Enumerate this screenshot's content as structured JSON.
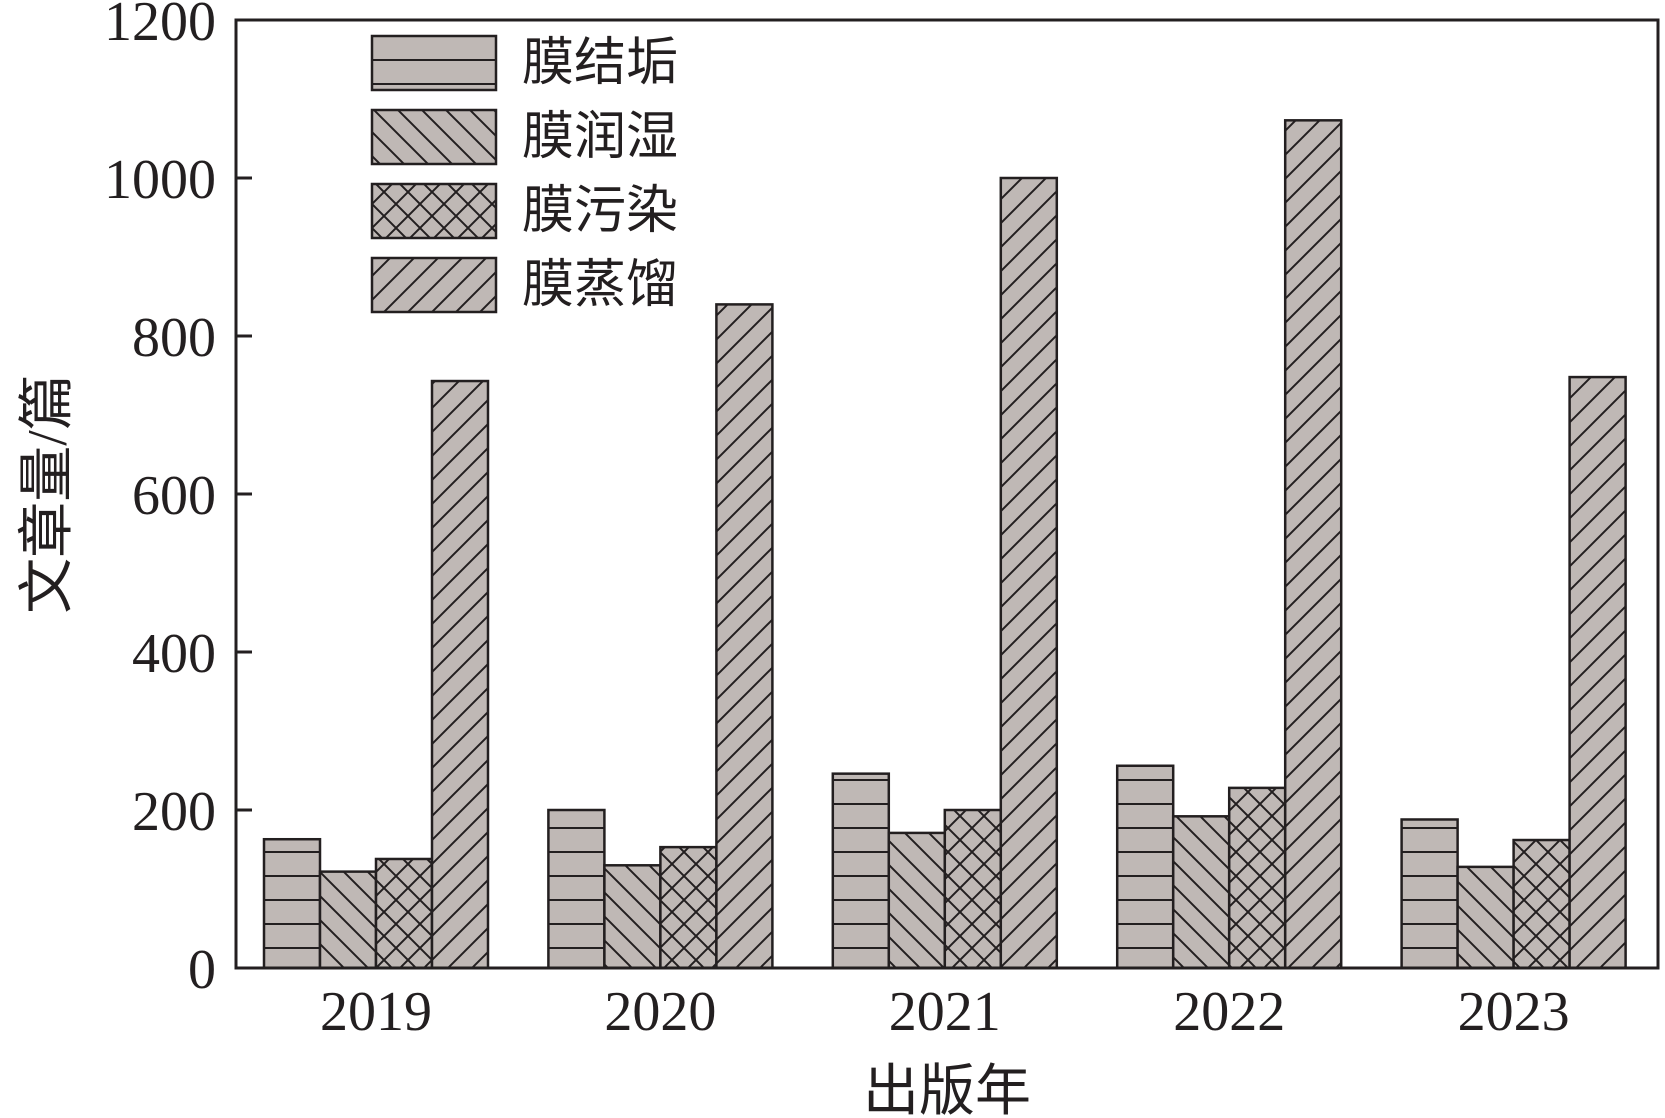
{
  "chart_data": {
    "type": "bar",
    "xlabel": "出版年",
    "ylabel": "文章量/篇",
    "ylim": [
      0,
      1200
    ],
    "yticks": [
      "0",
      "200",
      "400",
      "600",
      "800",
      "1000",
      "1200"
    ],
    "categories": [
      "2019",
      "2020",
      "2021",
      "2022",
      "2023"
    ],
    "legend_position": "top-left",
    "grid": false,
    "bar_fill": "#bfb8b5",
    "series": [
      {
        "name": "膜结垢",
        "pattern": "horizontal",
        "values": [
          163,
          200,
          246,
          256,
          188
        ]
      },
      {
        "name": "膜润湿",
        "pattern": "backslash",
        "values": [
          122,
          130,
          171,
          192,
          128
        ]
      },
      {
        "name": "膜污染",
        "pattern": "cross",
        "values": [
          138,
          153,
          200,
          228,
          162
        ]
      },
      {
        "name": "膜蒸馏",
        "pattern": "forwardslash",
        "values": [
          743,
          840,
          1000,
          1073,
          748
        ]
      }
    ]
  }
}
